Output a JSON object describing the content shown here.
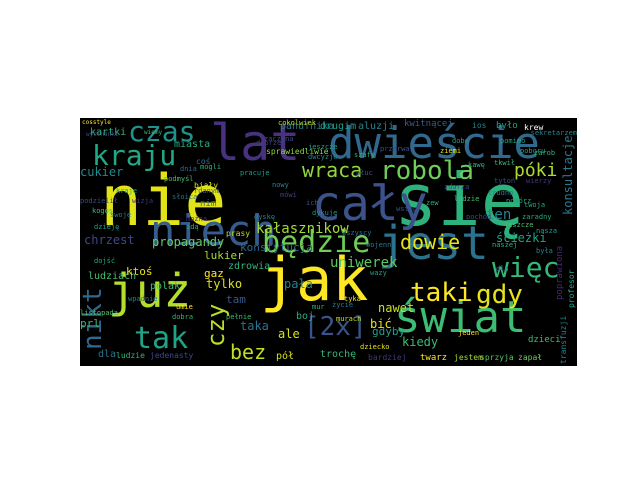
{
  "wordcloud": {
    "background": "#000000",
    "words": [
      {
        "text": "nie",
        "color": "#e2e418"
      },
      {
        "text": "się",
        "color": "#2db27d"
      },
      {
        "text": "cały",
        "color": "#3b528b"
      },
      {
        "text": "jak",
        "color": "#fde725"
      },
      {
        "text": "lat",
        "color": "#46327e"
      },
      {
        "text": "dwieście",
        "color": "#31688e"
      },
      {
        "text": "niech",
        "color": "#365c8d"
      },
      {
        "text": "jest",
        "color": "#2c728e"
      },
      {
        "text": "już",
        "color": "#b5de2b"
      },
      {
        "text": "świat",
        "color": "#3dbc74"
      },
      {
        "text": "będzie",
        "color": "#6ece58"
      },
      {
        "text": "czas",
        "color": "#21918c"
      },
      {
        "text": "kraju",
        "color": "#22a884"
      },
      {
        "text": "robola",
        "color": "#6ece58"
      },
      {
        "text": "więc",
        "color": "#35b779"
      },
      {
        "text": "taki",
        "color": "#fde725"
      },
      {
        "text": "gdy",
        "color": "#e5e419"
      },
      {
        "text": "tak",
        "color": "#20a386"
      },
      {
        "text": "nikt",
        "color": "#31688e"
      },
      {
        "text": "[2x]",
        "color": "#3b528b"
      },
      {
        "text": "czy",
        "color": "#b8de29"
      },
      {
        "text": "bez",
        "color": "#c2df23"
      },
      {
        "text": "wraca",
        "color": "#90d743"
      },
      {
        "text": "póki",
        "color": "#addc30"
      },
      {
        "text": "dowie",
        "color": "#e5e419"
      },
      {
        "text": "konsultacje",
        "color": "#2a788e"
      },
      {
        "text": "ten",
        "color": "#25848e"
      },
      {
        "text": "kałasznikow",
        "color": "#a0da39"
      },
      {
        "text": "uniwerek",
        "color": "#5ec962"
      },
      {
        "text": "propagandy",
        "color": "#67cc5c"
      },
      {
        "text": "chrzest",
        "color": "#3e4989"
      },
      {
        "text": "kartki",
        "color": "#2fb47c"
      },
      {
        "text": "miasta",
        "color": "#26ad81"
      },
      {
        "text": "panufnika",
        "color": "#2a788e"
      },
      {
        "text": "drugim",
        "color": "#1f9e89"
      },
      {
        "text": "aluzji",
        "color": "#25848e"
      },
      {
        "text": "kwitnącej",
        "color": "#365c8d"
      },
      {
        "text": "było",
        "color": "#1fa188"
      },
      {
        "text": "krew",
        "color": "#ffffff"
      },
      {
        "text": "ludziach",
        "color": "#44bf70"
      },
      {
        "text": "zdrowia",
        "color": "#2fb47c"
      },
      {
        "text": "polak",
        "color": "#3fbc73"
      },
      {
        "text": "tylko",
        "color": "#d8e219"
      },
      {
        "text": "tam",
        "color": "#38588c"
      },
      {
        "text": "pała",
        "color": "#26828e"
      },
      {
        "text": "taka",
        "color": "#2c728e"
      },
      {
        "text": "ale",
        "color": "#d8e219"
      },
      {
        "text": "boj",
        "color": "#26ad81"
      },
      {
        "text": "nawet",
        "color": "#cae11f"
      },
      {
        "text": "gdyby",
        "color": "#1f9e89"
      },
      {
        "text": "bić",
        "color": "#e5e419"
      },
      {
        "text": "kiedy",
        "color": "#3dbc74"
      },
      {
        "text": "ścieżki",
        "color": "#20a386"
      },
      {
        "text": "poprawiona",
        "color": "#482878"
      },
      {
        "text": "dla",
        "color": "#2c728e"
      },
      {
        "text": "ludzie",
        "color": "#2fb47c"
      },
      {
        "text": "jedenasty",
        "color": "#3e4a89"
      },
      {
        "text": "pół",
        "color": "#d2e21b"
      },
      {
        "text": "trochę",
        "color": "#35b779"
      },
      {
        "text": "bardziej",
        "color": "#46327e"
      },
      {
        "text": "twarz",
        "color": "#fde725"
      },
      {
        "text": "jestem",
        "color": "#a5db36"
      },
      {
        "text": "sprzyja",
        "color": "#52c569"
      },
      {
        "text": "zapał",
        "color": "#6ccd5a"
      },
      {
        "text": "cukier",
        "color": "#23898e"
      },
      {
        "text": "gaz",
        "color": "#fde725"
      },
      {
        "text": "lukier",
        "color": "#a8db34"
      },
      {
        "text": "konstytucja",
        "color": "#31688e"
      },
      {
        "text": "ktoś",
        "color": "#e7e419"
      },
      {
        "text": "prl",
        "color": "#35b779"
      },
      {
        "text": "dzieci",
        "color": "#3dbc74"
      },
      {
        "text": "profesor",
        "color": "#22a884"
      },
      {
        "text": "transfuzji",
        "color": "#25848e"
      },
      {
        "text": "nim",
        "color": "#2c728e"
      },
      {
        "text": "prasy",
        "color": "#b5de2b"
      },
      {
        "text": "sprawiedliwie",
        "color": "#8ed645"
      },
      {
        "text": "szafy",
        "color": "#2db27d"
      },
      {
        "text": "płuc",
        "color": "#3b528b"
      },
      {
        "text": "mówi",
        "color": "#433e85"
      },
      {
        "text": "pomimo",
        "color": "#22a884"
      },
      {
        "text": "tkwił",
        "color": "#3bbb75"
      },
      {
        "text": "trudno",
        "color": "#2a788e"
      },
      {
        "text": "pomórz",
        "color": "#20a486"
      },
      {
        "text": "tytoń",
        "color": "#3f4788"
      },
      {
        "text": "zaradny",
        "color": "#23a983"
      },
      {
        "text": "nasza",
        "color": "#1fa188"
      },
      {
        "text": "jeden",
        "color": "#fde725"
      },
      {
        "text": "dziecko",
        "color": "#e5e419"
      },
      {
        "text": "umie",
        "color": "#fde725"
      },
      {
        "text": "mur",
        "color": "#2fb47c"
      },
      {
        "text": "murach",
        "color": "#c8e020"
      },
      {
        "text": "pełnie",
        "color": "#3aba76"
      },
      {
        "text": "tyka",
        "color": "#efe51c"
      },
      {
        "text": "listopada",
        "color": "#52c569"
      },
      {
        "text": "wpadnie",
        "color": "#2a788e"
      },
      {
        "text": "dobra",
        "color": "#31b57b"
      },
      {
        "text": "życie",
        "color": "#287c8e"
      },
      {
        "text": "twoja",
        "color": "#29af7f"
      },
      {
        "text": "wierzy",
        "color": "#46337f"
      },
      {
        "text": "jeszcze",
        "color": "#4ac16d"
      },
      {
        "text": "kraje",
        "color": "#1f9e89"
      },
      {
        "text": "zaczyna",
        "color": "#3e4989"
      },
      {
        "text": "podzielił",
        "color": "#3e4989"
      },
      {
        "text": "coś",
        "color": "#2c728e"
      },
      {
        "text": "dobrze",
        "color": "#433d84"
      },
      {
        "text": "podmyśl",
        "color": "#44bf70"
      },
      {
        "text": "biały",
        "color": "#d0e11c"
      },
      {
        "text": "słoica",
        "color": "#2c728e"
      },
      {
        "text": "rdanym",
        "color": "#3b528b"
      },
      {
        "text": "ich",
        "color": "#3b528b"
      },
      {
        "text": "dykuje",
        "color": "#21918c"
      },
      {
        "text": "dwcyzje",
        "color": "#25848e"
      },
      {
        "text": "jeszcze",
        "color": "#1fa188"
      },
      {
        "text": "naszej",
        "color": "#2db27d"
      },
      {
        "text": "była",
        "color": "#25848e"
      },
      {
        "text": "dla",
        "color": "#2a788e"
      },
      {
        "text": "wazy",
        "color": "#1f9e89"
      },
      {
        "text": "idą",
        "color": "#2fb47c"
      },
      {
        "text": "swoje",
        "color": "#2a788e"
      },
      {
        "text": "dojść",
        "color": "#22a884"
      },
      {
        "text": "kogos",
        "color": "#3dbc74"
      },
      {
        "text": "dzieję",
        "color": "#1fa188"
      },
      {
        "text": "dyskę",
        "color": "#25848e"
      },
      {
        "text": "można",
        "color": "#46327e"
      },
      {
        "text": "ludzie",
        "color": "#44bf70"
      },
      {
        "text": "zdarza",
        "color": "#3e4989"
      },
      {
        "text": "cokolwiek",
        "color": "#b5de2b"
      },
      {
        "text": "ios",
        "color": "#25848e"
      },
      {
        "text": "dobę",
        "color": "#1f9e89"
      },
      {
        "text": "ziemi",
        "color": "#e2e418"
      },
      {
        "text": "poboru",
        "color": "#20a486"
      },
      {
        "text": "kawę",
        "color": "#2fb47c"
      },
      {
        "text": "wstęp",
        "color": "#3b528b"
      },
      {
        "text": "zew",
        "color": "#29af7f"
      },
      {
        "text": "wszyscy",
        "color": "#2c728e"
      },
      {
        "text": "wojenne",
        "color": "#2a788e"
      },
      {
        "text": "pochód",
        "color": "#3f4788"
      },
      {
        "text": "sekretarzem",
        "color": "#25848e"
      },
      {
        "text": "zarob",
        "color": "#35b779"
      },
      {
        "text": "przerwa",
        "color": "#3b528b"
      },
      {
        "text": "pracuje",
        "color": "#1f9e89"
      },
      {
        "text": "mogli",
        "color": "#2db27d"
      },
      {
        "text": "nowy",
        "color": "#25848e"
      },
      {
        "text": "dnia",
        "color": "#31688e"
      },
      {
        "text": "wizja",
        "color": "#46327e"
      },
      {
        "text": "cosstyle",
        "color": "#fde725"
      },
      {
        "text": "wycinanki",
        "color": "#3e4989"
      },
      {
        "text": "wiemy",
        "color": "#3dbc74"
      }
    ]
  }
}
